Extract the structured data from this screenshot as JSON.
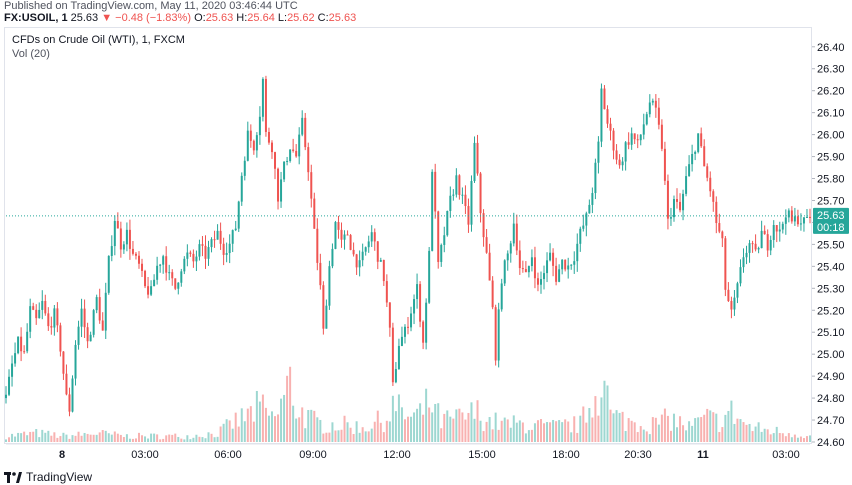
{
  "header": {
    "published": "Published on TradingView.com, May 11, 2020 03:46:44 UTC"
  },
  "ohlc": {
    "symbol": "FX:USOIL, 1",
    "last": "25.63",
    "change": "▼ −0.48 (−1.83%)",
    "o_label": "O:",
    "o": "25.63",
    "h_label": "H:",
    "h": "25.64",
    "l_label": "L:",
    "l": "25.62",
    "c_label": "C:",
    "c": "25.63"
  },
  "legend": {
    "title": "CFDs on Crude Oil (WTI), 1, FXCM",
    "volume": "Vol (20)"
  },
  "price_label": {
    "value": "25.63",
    "countdown": "00:18"
  },
  "footer": {
    "brand": "TradingView"
  },
  "colors": {
    "up": "#26a69a",
    "down": "#ef5350",
    "price_line": "#26a69a"
  },
  "chart_data": {
    "type": "candlestick",
    "y_ticks": [
      "26.40",
      "26.30",
      "26.20",
      "26.10",
      "26.00",
      "25.90",
      "25.80",
      "25.70",
      "25.60",
      "25.50",
      "25.40",
      "25.30",
      "25.20",
      "25.10",
      "25.00",
      "24.90",
      "24.80",
      "24.70",
      "24.60"
    ],
    "ylim": [
      24.6,
      26.44
    ],
    "x_ticks": [
      "8",
      "03:00",
      "06:00",
      "09:00",
      "12:00",
      "15:00",
      "18:00",
      "20:30",
      "11",
      "03:00"
    ],
    "current_price": 25.63,
    "grid": false,
    "price_path": [
      [
        0,
        24.8
      ],
      [
        2,
        24.95
      ],
      [
        4,
        25.05
      ],
      [
        6,
        25.0
      ],
      [
        8,
        25.2
      ],
      [
        10,
        25.15
      ],
      [
        12,
        25.23
      ],
      [
        14,
        25.12
      ],
      [
        16,
        25.18
      ],
      [
        18,
        25.03
      ],
      [
        20,
        24.8
      ],
      [
        21,
        24.75
      ],
      [
        23,
        25.05
      ],
      [
        25,
        25.2
      ],
      [
        27,
        25.05
      ],
      [
        29,
        25.18
      ],
      [
        30,
        25.25
      ],
      [
        32,
        25.1
      ],
      [
        34,
        25.42
      ],
      [
        36,
        25.62
      ],
      [
        38,
        25.5
      ],
      [
        40,
        25.55
      ],
      [
        42,
        25.45
      ],
      [
        44,
        25.4
      ],
      [
        46,
        25.3
      ],
      [
        48,
        25.28
      ],
      [
        50,
        25.4
      ],
      [
        52,
        25.45
      ],
      [
        54,
        25.35
      ],
      [
        56,
        25.3
      ],
      [
        58,
        25.4
      ],
      [
        60,
        25.45
      ],
      [
        62,
        25.42
      ],
      [
        64,
        25.48
      ],
      [
        66,
        25.45
      ],
      [
        68,
        25.5
      ],
      [
        70,
        25.55
      ],
      [
        72,
        25.48
      ],
      [
        74,
        25.5
      ],
      [
        76,
        25.58
      ],
      [
        78,
        25.82
      ],
      [
        80,
        26.0
      ],
      [
        82,
        25.95
      ],
      [
        84,
        26.1
      ],
      [
        85,
        26.25
      ],
      [
        86,
        26.0
      ],
      [
        88,
        25.95
      ],
      [
        90,
        25.72
      ],
      [
        92,
        25.85
      ],
      [
        94,
        25.95
      ],
      [
        96,
        25.9
      ],
      [
        98,
        26.05
      ],
      [
        100,
        25.85
      ],
      [
        102,
        25.55
      ],
      [
        104,
        25.3
      ],
      [
        105,
        25.1
      ],
      [
        107,
        25.4
      ],
      [
        109,
        25.6
      ],
      [
        111,
        25.5
      ],
      [
        113,
        25.55
      ],
      [
        115,
        25.45
      ],
      [
        117,
        25.4
      ],
      [
        119,
        25.48
      ],
      [
        121,
        25.55
      ],
      [
        123,
        25.45
      ],
      [
        125,
        25.35
      ],
      [
        127,
        25.1
      ],
      [
        128,
        24.85
      ],
      [
        130,
        25.05
      ],
      [
        132,
        25.1
      ],
      [
        134,
        25.2
      ],
      [
        136,
        25.3
      ],
      [
        138,
        25.05
      ],
      [
        140,
        25.45
      ],
      [
        141,
        25.85
      ],
      [
        143,
        25.4
      ],
      [
        145,
        25.55
      ],
      [
        147,
        25.7
      ],
      [
        149,
        25.8
      ],
      [
        151,
        25.7
      ],
      [
        153,
        25.6
      ],
      [
        155,
        25.95
      ],
      [
        157,
        25.65
      ],
      [
        159,
        25.45
      ],
      [
        161,
        25.2
      ],
      [
        162,
        25.0
      ],
      [
        164,
        25.35
      ],
      [
        166,
        25.45
      ],
      [
        168,
        25.6
      ],
      [
        170,
        25.4
      ],
      [
        172,
        25.35
      ],
      [
        174,
        25.45
      ],
      [
        176,
        25.3
      ],
      [
        178,
        25.38
      ],
      [
        180,
        25.45
      ],
      [
        182,
        25.35
      ],
      [
        184,
        25.42
      ],
      [
        186,
        25.4
      ],
      [
        188,
        25.45
      ],
      [
        190,
        25.55
      ],
      [
        192,
        25.62
      ],
      [
        194,
        25.75
      ],
      [
        196,
        25.95
      ],
      [
        197,
        26.2
      ],
      [
        199,
        26.05
      ],
      [
        201,
        25.95
      ],
      [
        203,
        25.85
      ],
      [
        205,
        25.95
      ],
      [
        207,
        26.0
      ],
      [
        209,
        25.95
      ],
      [
        211,
        26.05
      ],
      [
        213,
        26.15
      ],
      [
        215,
        26.1
      ],
      [
        217,
        25.95
      ],
      [
        219,
        25.6
      ],
      [
        221,
        25.7
      ],
      [
        223,
        25.65
      ],
      [
        225,
        25.8
      ],
      [
        227,
        25.9
      ],
      [
        229,
        26.0
      ],
      [
        231,
        25.85
      ],
      [
        233,
        25.75
      ],
      [
        235,
        25.6
      ],
      [
        237,
        25.5
      ],
      [
        238,
        25.3
      ],
      [
        240,
        25.18
      ],
      [
        242,
        25.3
      ],
      [
        244,
        25.45
      ],
      [
        246,
        25.5
      ],
      [
        248,
        25.45
      ],
      [
        250,
        25.55
      ],
      [
        252,
        25.5
      ],
      [
        254,
        25.6
      ],
      [
        256,
        25.55
      ],
      [
        258,
        25.65
      ],
      [
        260,
        25.6
      ],
      [
        262,
        25.62
      ],
      [
        264,
        25.6
      ],
      [
        266,
        25.63
      ]
    ],
    "price_path_index_range": [
      0,
      266
    ],
    "volume": [
      [
        0,
        2
      ],
      [
        10,
        3
      ],
      [
        20,
        2
      ],
      [
        30,
        3
      ],
      [
        40,
        2
      ],
      [
        50,
        2
      ],
      [
        60,
        2
      ],
      [
        70,
        3
      ],
      [
        76,
        7
      ],
      [
        80,
        9
      ],
      [
        84,
        12
      ],
      [
        88,
        8
      ],
      [
        90,
        10
      ],
      [
        94,
        20
      ],
      [
        96,
        12
      ],
      [
        100,
        8
      ],
      [
        104,
        6
      ],
      [
        110,
        6
      ],
      [
        118,
        5
      ],
      [
        126,
        8
      ],
      [
        128,
        12
      ],
      [
        134,
        8
      ],
      [
        138,
        10
      ],
      [
        140,
        14
      ],
      [
        144,
        7
      ],
      [
        150,
        8
      ],
      [
        156,
        10
      ],
      [
        160,
        7
      ],
      [
        166,
        6
      ],
      [
        172,
        6
      ],
      [
        180,
        5
      ],
      [
        190,
        6
      ],
      [
        196,
        18
      ],
      [
        197,
        28
      ],
      [
        200,
        9
      ],
      [
        206,
        7
      ],
      [
        214,
        6
      ],
      [
        220,
        8
      ],
      [
        226,
        5
      ],
      [
        232,
        8
      ],
      [
        236,
        7
      ],
      [
        240,
        10
      ],
      [
        246,
        5
      ],
      [
        252,
        4
      ],
      [
        260,
        3
      ],
      [
        266,
        2
      ]
    ]
  }
}
